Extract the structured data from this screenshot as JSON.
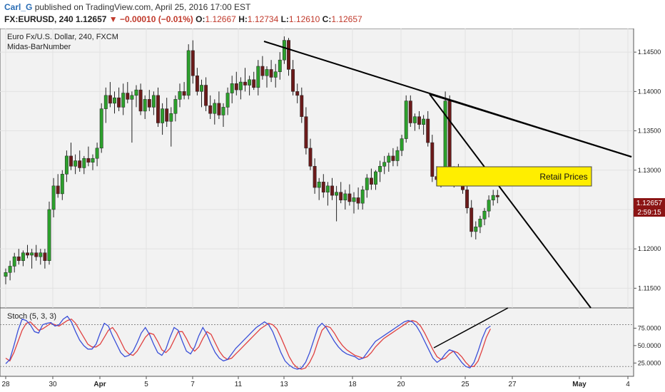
{
  "header": {
    "author": "Carl_G",
    "published_text": "published on TradingView.com, April 25, 2016 17:00 EST",
    "symbol": "FX:EURUSD, 240",
    "last": "1.12657",
    "change": "−0.00010 (−0.01%)",
    "o_label": "O:",
    "o": "1.12667",
    "h_label": "H:",
    "h": "1.12734",
    "l_label": "L:",
    "l": "1.12610",
    "c_label": "C:",
    "c": "1.12657"
  },
  "panel": {
    "title": "Euro Fx/U.S. Dollar, 240, FXCM",
    "indicator": "Midas-BarNumber",
    "stoch_label": "Stoch (5, 3, 3)"
  },
  "annotation": {
    "box_label": "Retail Prices"
  },
  "price_badge": {
    "price": "1.12657",
    "countdown": "2:59:15"
  },
  "colors": {
    "up": "#2ca02c",
    "down": "#6b1a1a",
    "k_line": "#3a4fd8",
    "d_line": "#e04040",
    "box": "#ffee00",
    "badge": "#8b1414"
  },
  "chart_data": {
    "type": "candlestick",
    "x_tick_labels": [
      "28",
      "30",
      "Apr",
      "5",
      "7",
      "11",
      "13",
      "18",
      "20",
      "25",
      "27",
      "May",
      "4"
    ],
    "price_axis": {
      "ticks": [
        "1.14500",
        "1.14000",
        "1.13500",
        "1.13000",
        "1.12500",
        "1.12000",
        "1.11500"
      ],
      "range": [
        1.1125,
        1.148
      ]
    },
    "stoch_axis": {
      "ticks": [
        "75.0000",
        "50.0000",
        "25.0000"
      ],
      "range": [
        10,
        100
      ],
      "levels": [
        80,
        20
      ]
    },
    "ohlc": [
      [
        1.1165,
        1.1175,
        1.1155,
        1.117
      ],
      [
        1.117,
        1.1185,
        1.116,
        1.1178
      ],
      [
        1.1178,
        1.1195,
        1.117,
        1.119
      ],
      [
        1.119,
        1.12,
        1.118,
        1.1185
      ],
      [
        1.1185,
        1.1198,
        1.1178,
        1.1195
      ],
      [
        1.1195,
        1.1205,
        1.1188,
        1.1192
      ],
      [
        1.1192,
        1.12,
        1.1175,
        1.1195
      ],
      [
        1.1195,
        1.1205,
        1.1185,
        1.119
      ],
      [
        1.119,
        1.12,
        1.118,
        1.1195
      ],
      [
        1.1195,
        1.12,
        1.1175,
        1.1185
      ],
      [
        1.1185,
        1.126,
        1.118,
        1.125
      ],
      [
        1.125,
        1.129,
        1.124,
        1.128
      ],
      [
        1.128,
        1.1295,
        1.1265,
        1.127
      ],
      [
        1.127,
        1.13,
        1.1262,
        1.1295
      ],
      [
        1.1295,
        1.1325,
        1.1285,
        1.1318
      ],
      [
        1.1318,
        1.1335,
        1.13,
        1.1305
      ],
      [
        1.1305,
        1.132,
        1.1295,
        1.1312
      ],
      [
        1.1312,
        1.1325,
        1.1298,
        1.1303
      ],
      [
        1.1303,
        1.1318,
        1.1295,
        1.1315
      ],
      [
        1.1315,
        1.133,
        1.1305,
        1.131
      ],
      [
        1.131,
        1.132,
        1.13,
        1.1315
      ],
      [
        1.1315,
        1.1335,
        1.1305,
        1.1328
      ],
      [
        1.1328,
        1.1385,
        1.1322,
        1.1378
      ],
      [
        1.1378,
        1.1405,
        1.136,
        1.1395
      ],
      [
        1.1395,
        1.1412,
        1.138,
        1.1385
      ],
      [
        1.1385,
        1.14,
        1.1372,
        1.1392
      ],
      [
        1.1392,
        1.1405,
        1.1375,
        1.138
      ],
      [
        1.138,
        1.141,
        1.137,
        1.1398
      ],
      [
        1.1398,
        1.1412,
        1.1385,
        1.139
      ],
      [
        1.139,
        1.14,
        1.1335,
        1.1395
      ],
      [
        1.1395,
        1.1408,
        1.138,
        1.1402
      ],
      [
        1.1402,
        1.141,
        1.137,
        1.1375
      ],
      [
        1.1375,
        1.1395,
        1.1365,
        1.139
      ],
      [
        1.139,
        1.1402,
        1.1375,
        1.138
      ],
      [
        1.138,
        1.14,
        1.137,
        1.1395
      ],
      [
        1.1395,
        1.1405,
        1.1355,
        1.136
      ],
      [
        1.136,
        1.1385,
        1.1345,
        1.1378
      ],
      [
        1.1378,
        1.1392,
        1.1355,
        1.1362
      ],
      [
        1.1362,
        1.138,
        1.133,
        1.1372
      ],
      [
        1.1372,
        1.1395,
        1.1362,
        1.139
      ],
      [
        1.139,
        1.141,
        1.138,
        1.14
      ],
      [
        1.14,
        1.1412,
        1.139,
        1.1395
      ],
      [
        1.1395,
        1.146,
        1.139,
        1.1452
      ],
      [
        1.1452,
        1.1465,
        1.141,
        1.142
      ],
      [
        1.142,
        1.143,
        1.1395,
        1.14
      ],
      [
        1.14,
        1.1415,
        1.138,
        1.1408
      ],
      [
        1.1408,
        1.1418,
        1.1375,
        1.1382
      ],
      [
        1.1382,
        1.1395,
        1.1365,
        1.1372
      ],
      [
        1.1372,
        1.139,
        1.1358,
        1.1385
      ],
      [
        1.1385,
        1.14,
        1.1365,
        1.137
      ],
      [
        1.137,
        1.1385,
        1.1355,
        1.138
      ],
      [
        1.138,
        1.1405,
        1.137,
        1.1398
      ],
      [
        1.1398,
        1.142,
        1.1385,
        1.141
      ],
      [
        1.141,
        1.1425,
        1.1395,
        1.1402
      ],
      [
        1.1402,
        1.1418,
        1.139,
        1.1412
      ],
      [
        1.1412,
        1.143,
        1.14,
        1.1408
      ],
      [
        1.1408,
        1.142,
        1.1395,
        1.1415
      ],
      [
        1.1415,
        1.1425,
        1.1402,
        1.1405
      ],
      [
        1.1405,
        1.144,
        1.1395,
        1.1432
      ],
      [
        1.1432,
        1.1445,
        1.1415,
        1.142
      ],
      [
        1.142,
        1.1432,
        1.1405,
        1.1428
      ],
      [
        1.1428,
        1.144,
        1.1412,
        1.1418
      ],
      [
        1.1418,
        1.1435,
        1.1405,
        1.1425
      ],
      [
        1.1425,
        1.145,
        1.1415,
        1.144
      ],
      [
        1.144,
        1.147,
        1.1435,
        1.1465
      ],
      [
        1.1465,
        1.1468,
        1.142,
        1.1428
      ],
      [
        1.1428,
        1.144,
        1.1395,
        1.14
      ],
      [
        1.14,
        1.141,
        1.1385,
        1.1395
      ],
      [
        1.1395,
        1.1405,
        1.136,
        1.1368
      ],
      [
        1.1368,
        1.138,
        1.132,
        1.1328
      ],
      [
        1.1328,
        1.134,
        1.13,
        1.1305
      ],
      [
        1.1305,
        1.1315,
        1.127,
        1.1278
      ],
      [
        1.1278,
        1.129,
        1.1262,
        1.1285
      ],
      [
        1.1285,
        1.1295,
        1.1265,
        1.1272
      ],
      [
        1.1272,
        1.1285,
        1.1255,
        1.128
      ],
      [
        1.128,
        1.129,
        1.1262,
        1.1268
      ],
      [
        1.1268,
        1.128,
        1.1235,
        1.1272
      ],
      [
        1.1272,
        1.1285,
        1.1258,
        1.1262
      ],
      [
        1.1262,
        1.1275,
        1.125,
        1.127
      ],
      [
        1.127,
        1.1282,
        1.1255,
        1.126
      ],
      [
        1.126,
        1.1272,
        1.1245,
        1.1265
      ],
      [
        1.1265,
        1.1278,
        1.125,
        1.1258
      ],
      [
        1.1258,
        1.128,
        1.125,
        1.1275
      ],
      [
        1.1275,
        1.1295,
        1.1265,
        1.129
      ],
      [
        1.129,
        1.1302,
        1.1275,
        1.1282
      ],
      [
        1.1282,
        1.13,
        1.1275,
        1.1298
      ],
      [
        1.1298,
        1.1312,
        1.1285,
        1.1305
      ],
      [
        1.1305,
        1.1318,
        1.1295,
        1.131
      ],
      [
        1.131,
        1.1322,
        1.1298,
        1.1318
      ],
      [
        1.1318,
        1.1328,
        1.1305,
        1.1312
      ],
      [
        1.1312,
        1.133,
        1.1305,
        1.1325
      ],
      [
        1.1325,
        1.1345,
        1.1318,
        1.134
      ],
      [
        1.134,
        1.1395,
        1.1335,
        1.1388
      ],
      [
        1.1388,
        1.1395,
        1.1355,
        1.136
      ],
      [
        1.136,
        1.1372,
        1.135,
        1.1368
      ],
      [
        1.1368,
        1.1375,
        1.1352,
        1.1358
      ],
      [
        1.1358,
        1.137,
        1.1345,
        1.1365
      ],
      [
        1.1365,
        1.1375,
        1.133,
        1.1335
      ],
      [
        1.1335,
        1.1345,
        1.1285,
        1.1292
      ],
      [
        1.1292,
        1.1305,
        1.128,
        1.1288
      ],
      [
        1.1288,
        1.13,
        1.1278,
        1.1292
      ],
      [
        1.1292,
        1.14,
        1.128,
        1.1388
      ],
      [
        1.1388,
        1.1395,
        1.128,
        1.1288
      ],
      [
        1.1288,
        1.1305,
        1.1278,
        1.13
      ],
      [
        1.13,
        1.1308,
        1.1285,
        1.129
      ],
      [
        1.129,
        1.13,
        1.127,
        1.1275
      ],
      [
        1.1275,
        1.1282,
        1.1245,
        1.1252
      ],
      [
        1.1252,
        1.1262,
        1.1215,
        1.1222
      ],
      [
        1.1222,
        1.1235,
        1.1212,
        1.1228
      ],
      [
        1.1228,
        1.1242,
        1.122,
        1.1238
      ],
      [
        1.1238,
        1.1252,
        1.123,
        1.1248
      ],
      [
        1.1248,
        1.1268,
        1.124,
        1.1262
      ],
      [
        1.1262,
        1.1275,
        1.1255,
        1.1268
      ],
      [
        1.1268,
        1.1275,
        1.1258,
        1.1266
      ]
    ],
    "stoch_k": [
      24,
      30,
      50,
      72,
      88,
      86,
      80,
      70,
      68,
      80,
      82,
      83,
      78,
      80,
      88,
      92,
      84,
      70,
      58,
      50,
      45,
      45,
      52,
      68,
      82,
      78,
      64,
      52,
      40,
      34,
      36,
      42,
      54,
      68,
      76,
      66,
      52,
      40,
      36,
      45,
      62,
      76,
      72,
      56,
      42,
      38,
      48,
      64,
      76,
      66,
      52,
      40,
      32,
      28,
      30,
      38,
      46,
      52,
      58,
      64,
      70,
      76,
      80,
      84,
      80,
      70,
      55,
      40,
      28,
      22,
      18,
      16,
      18,
      26,
      40,
      58,
      76,
      82,
      76,
      66,
      56,
      48,
      42,
      38,
      36,
      34,
      30,
      32,
      40,
      48,
      56,
      60,
      64,
      68,
      72,
      76,
      80,
      84,
      86,
      84,
      78,
      68,
      56,
      44,
      32,
      26,
      30,
      38,
      44,
      42,
      34,
      26,
      20,
      18,
      26,
      42,
      60,
      74,
      78
    ],
    "stoch_d": [
      32,
      28,
      40,
      56,
      72,
      82,
      84,
      78,
      72,
      74,
      78,
      82,
      80,
      78,
      82,
      86,
      88,
      82,
      72,
      62,
      52,
      48,
      48,
      52,
      62,
      72,
      76,
      68,
      56,
      44,
      38,
      36,
      42,
      52,
      62,
      68,
      66,
      56,
      44,
      40,
      46,
      58,
      70,
      70,
      60,
      48,
      42,
      48,
      60,
      70,
      66,
      54,
      42,
      34,
      30,
      32,
      38,
      44,
      50,
      56,
      62,
      68,
      74,
      78,
      82,
      80,
      74,
      62,
      48,
      34,
      24,
      18,
      16,
      18,
      26,
      38,
      56,
      72,
      78,
      76,
      68,
      58,
      50,
      44,
      40,
      36,
      34,
      32,
      34,
      40,
      48,
      54,
      60,
      64,
      68,
      72,
      76,
      80,
      84,
      86,
      84,
      78,
      68,
      56,
      44,
      34,
      30,
      32,
      38,
      42,
      40,
      34,
      26,
      20,
      20,
      28,
      44,
      62,
      74
    ]
  }
}
